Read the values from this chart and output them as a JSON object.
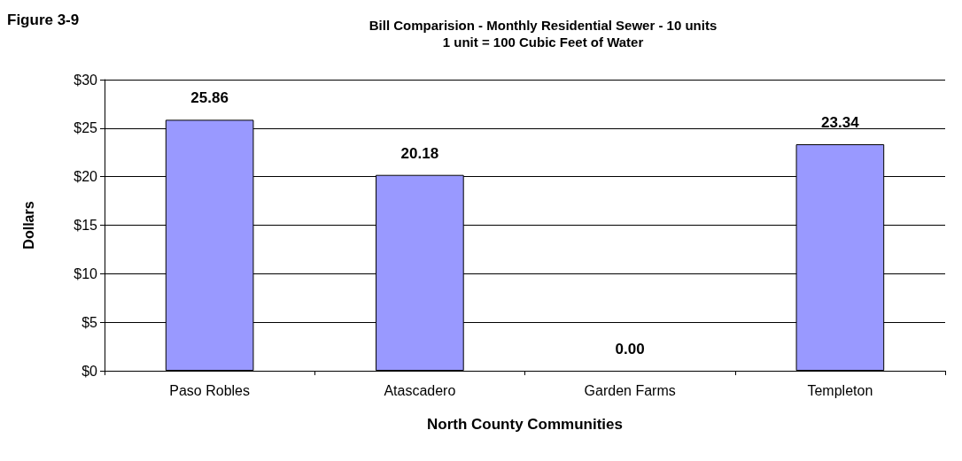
{
  "chart_data": {
    "type": "bar",
    "title": "Bill Comparision - Monthly Residential Sewer - 10 units",
    "subtitle": "1 unit = 100 Cubic Feet of Water",
    "annotations": [
      "Figure 3-9"
    ],
    "xlabel": "North County Communities",
    "ylabel": "Dollars",
    "categories": [
      "Paso Robles",
      "Atascadero",
      "Garden Farms",
      "Templeton"
    ],
    "values": [
      25.86,
      20.18,
      0,
      23.34
    ],
    "value_labels": [
      "25.86",
      "20.18",
      "0.00",
      "23.34"
    ],
    "color": "#9999ff",
    "ylim": [
      0,
      30
    ],
    "yticks": [
      {
        "value": 0,
        "label": "$0"
      },
      {
        "value": 5,
        "label": "$5"
      },
      {
        "value": 10,
        "label": "$10"
      },
      {
        "value": 15,
        "label": "$15"
      },
      {
        "value": 20,
        "label": "$20"
      },
      {
        "value": 25,
        "label": "$25"
      },
      {
        "value": 30,
        "label": "$30"
      }
    ],
    "grid": "y"
  }
}
